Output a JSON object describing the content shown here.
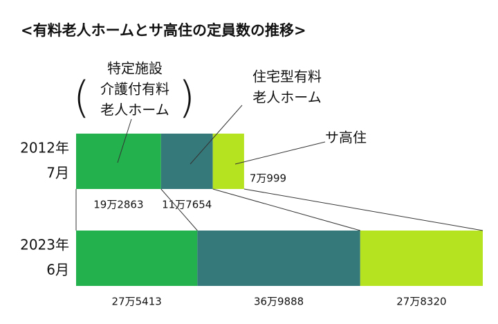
{
  "chart_data": {
    "type": "stacked-bar",
    "orientation": "horizontal",
    "title": "<有料老人ホームとサ高住の定員数の推移>",
    "categories": [
      [
        "2012年",
        "7月"
      ],
      [
        "2023年",
        "6月"
      ]
    ],
    "series": [
      {
        "name": [
          "特定施設",
          "介護付有料",
          "老人ホーム"
        ],
        "color": "#22b14c",
        "values": [
          192863,
          275413
        ],
        "value_labels": [
          "19万2863",
          "27万5413"
        ]
      },
      {
        "name": [
          "住宅型有料",
          "老人ホーム"
        ],
        "color": "#36797a",
        "values": [
          117654,
          369888
        ],
        "value_labels": [
          "11万7654",
          "36万9888"
        ]
      },
      {
        "name": [
          "サ高住"
        ],
        "color": "#b5e31f",
        "values": [
          70999,
          278320
        ],
        "value_labels": [
          "7万999",
          "27万8320"
        ]
      }
    ]
  }
}
